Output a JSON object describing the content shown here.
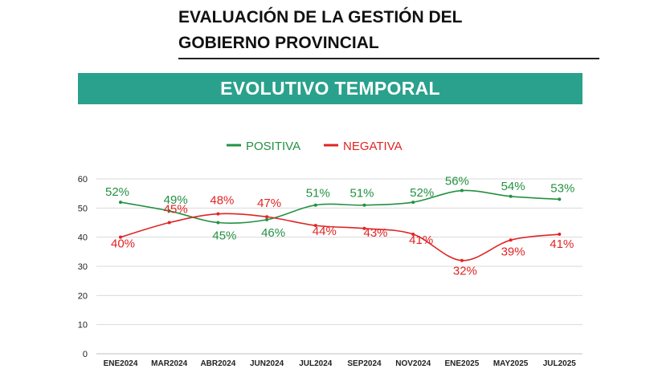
{
  "header": {
    "title_line1": "EVALUACIÓN DE LA GESTIÓN DEL",
    "title_line2": "GOBIERNO PROVINCIAL",
    "banner": "EVOLUTIVO TEMPORAL"
  },
  "colors": {
    "banner_bg": "#2aa18c",
    "positiva": "#239142",
    "negativa": "#e02424",
    "grid": "#d9d9d9"
  },
  "chart_data": {
    "type": "line",
    "title": "EVOLUTIVO TEMPORAL",
    "xlabel": "",
    "ylabel": "",
    "ylim": [
      0,
      60
    ],
    "yticks": [
      0,
      10,
      20,
      30,
      40,
      50,
      60
    ],
    "grid": true,
    "legend_position": "top-center",
    "categories": [
      "ENE2024",
      "MAR2024",
      "ABR2024",
      "JUN2024",
      "JUL2024",
      "SEP2024",
      "NOV2024",
      "ENE2025",
      "MAY2025",
      "JUL2025"
    ],
    "series": [
      {
        "name": "POSITIVA",
        "color": "#239142",
        "values": [
          52,
          49,
          45,
          46,
          51,
          51,
          52,
          56,
          54,
          53
        ],
        "labels": [
          "52%",
          "49%",
          "45%",
          "46%",
          "51%",
          "51%",
          "52%",
          "56%",
          "54%",
          "53%"
        ]
      },
      {
        "name": "NEGATIVA",
        "color": "#e02424",
        "values": [
          40,
          45,
          48,
          47,
          44,
          43,
          41,
          32,
          39,
          41
        ],
        "labels": [
          "40%",
          "45%",
          "48%",
          "47%",
          "44%",
          "43%",
          "41%",
          "32%",
          "39%",
          "41%"
        ]
      }
    ]
  }
}
